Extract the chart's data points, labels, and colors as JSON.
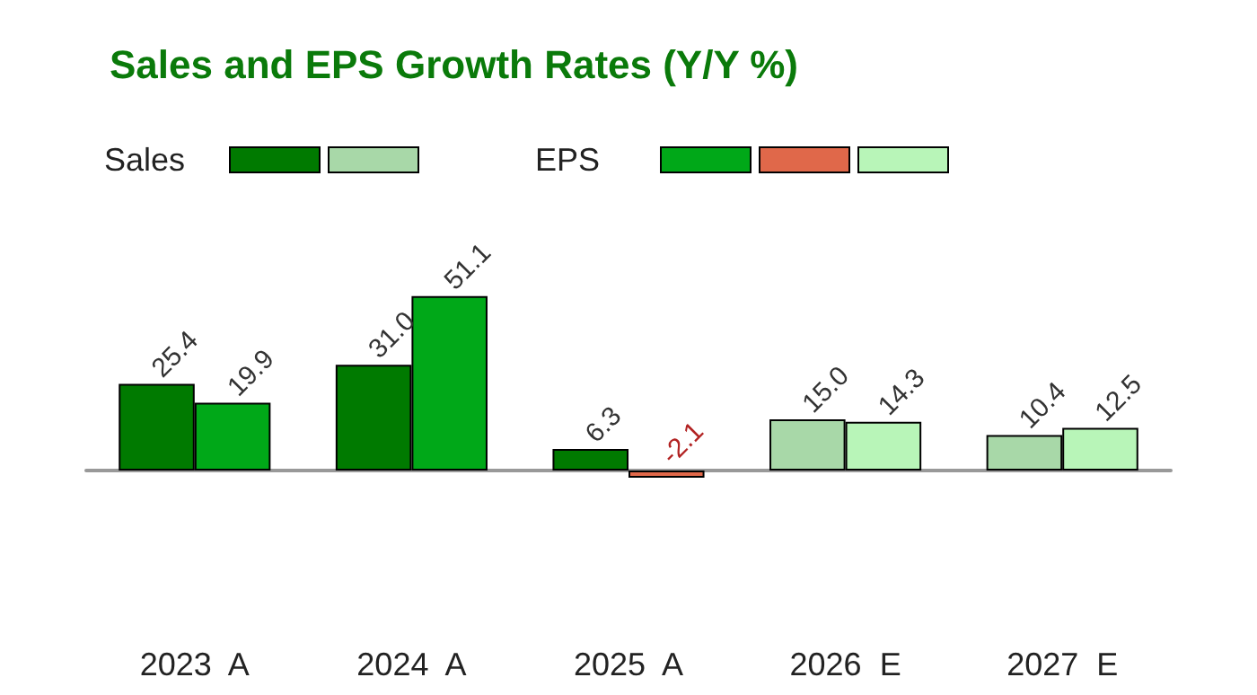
{
  "chart_data": {
    "type": "bar",
    "title": "Sales and EPS Growth Rates (Y/Y %)",
    "categories": [
      "2023  A",
      "2024  A",
      "2025  A",
      "2026  E",
      "2027  E"
    ],
    "series": [
      {
        "name": "Sales",
        "colors": [
          "#007a00",
          "#007a00",
          "#007a00",
          "#a8d8a8",
          "#a8d8a8"
        ],
        "values": [
          25.4,
          31.0,
          6.3,
          15.0,
          10.4
        ],
        "value_labels": [
          "25.4",
          "31.0",
          "6.3",
          "15.0",
          "10.4"
        ]
      },
      {
        "name": "EPS",
        "colors": [
          "#00a818",
          "#00a818",
          "#e0684a",
          "#b8f5b8",
          "#b8f5b8"
        ],
        "values": [
          19.9,
          51.1,
          -2.1,
          14.3,
          12.5
        ],
        "value_labels": [
          "19.9",
          "51.1",
          "-2.1",
          "14.3",
          "12.5"
        ]
      }
    ],
    "legend": "top left",
    "grid": false
  }
}
